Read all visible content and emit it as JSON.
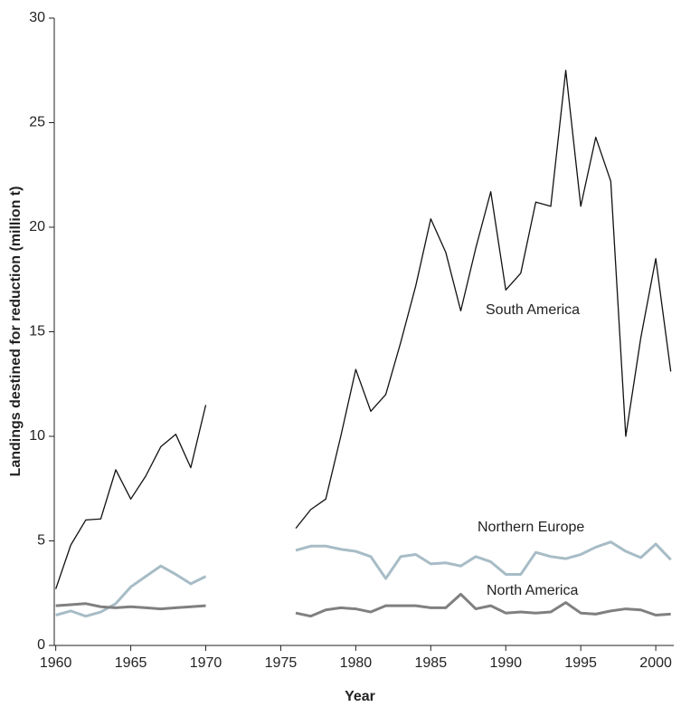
{
  "chart_data": {
    "type": "line",
    "xlabel": "Year",
    "ylabel": "Landings destined for reduction (million t)",
    "x": [
      1960,
      1961,
      1962,
      1963,
      1964,
      1965,
      1966,
      1967,
      1968,
      1969,
      1970,
      1971,
      1972,
      1973,
      1974,
      1975,
      1976,
      1977,
      1978,
      1979,
      1980,
      1981,
      1982,
      1983,
      1984,
      1985,
      1986,
      1987,
      1988,
      1989,
      1990,
      1991,
      1992,
      1993,
      1994,
      1995,
      1996,
      1997,
      1998,
      1999,
      2000,
      2001
    ],
    "series": [
      {
        "name": "South America",
        "color": "#111111",
        "values": [
          2.7,
          4.8,
          6.0,
          6.05,
          8.4,
          7.0,
          8.1,
          9.5,
          10.1,
          8.5,
          11.5,
          null,
          null,
          null,
          null,
          null,
          5.6,
          6.5,
          7.0,
          10.0,
          13.2,
          11.2,
          12.0,
          14.5,
          17.2,
          20.4,
          18.8,
          16.0,
          19.0,
          21.7,
          17.0,
          17.8,
          21.2,
          21.0,
          27.5,
          21.0,
          24.3,
          22.2,
          10.0,
          14.7,
          18.5,
          13.1
        ]
      },
      {
        "name": "Northern Europe",
        "color": "#a7bcc6",
        "values": [
          1.45,
          1.65,
          1.4,
          1.6,
          2.0,
          2.8,
          3.3,
          3.8,
          3.4,
          2.95,
          3.3,
          null,
          null,
          null,
          null,
          null,
          4.55,
          4.75,
          4.75,
          4.6,
          4.5,
          4.25,
          3.2,
          4.25,
          4.35,
          3.9,
          3.95,
          3.8,
          4.25,
          4.0,
          3.4,
          3.4,
          4.45,
          4.25,
          4.15,
          4.35,
          4.7,
          4.95,
          4.5,
          4.2,
          4.85,
          4.1
        ]
      },
      {
        "name": "North America",
        "color": "#808080",
        "values": [
          1.9,
          1.95,
          2.0,
          1.85,
          1.8,
          1.85,
          1.8,
          1.75,
          1.8,
          1.85,
          1.9,
          null,
          null,
          null,
          null,
          null,
          1.55,
          1.4,
          1.7,
          1.8,
          1.75,
          1.6,
          1.9,
          1.9,
          1.9,
          1.8,
          1.8,
          2.45,
          1.75,
          1.9,
          1.55,
          1.6,
          1.55,
          1.6,
          2.05,
          1.55,
          1.5,
          1.65,
          1.75,
          1.7,
          1.45,
          1.5
        ]
      }
    ],
    "xlim": [
      1959.9,
      2001.2
    ],
    "xticks": [
      1960,
      1965,
      1970,
      1975,
      1980,
      1985,
      1990,
      1995,
      2000
    ],
    "ylim": [
      0,
      30
    ],
    "yticks": [
      0,
      5,
      10,
      15,
      20,
      25,
      30
    ]
  }
}
